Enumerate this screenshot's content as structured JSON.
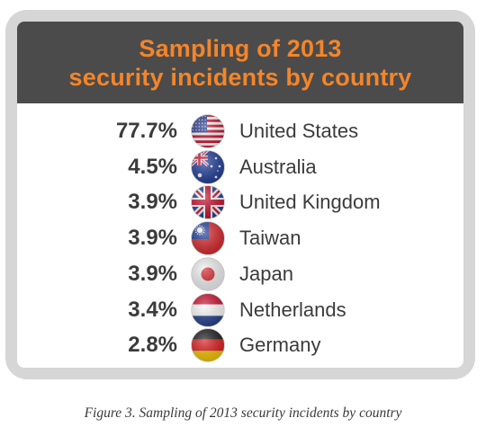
{
  "header": {
    "line1": "Sampling of 2013",
    "line2": "security incidents by country"
  },
  "chart_data": {
    "type": "table",
    "title": "Sampling of 2013 security incidents by country",
    "unit": "%",
    "rows": [
      {
        "percent": "77.7%",
        "value": 77.7,
        "country": "United States",
        "flag_icon": "us-flag-icon"
      },
      {
        "percent": "4.5%",
        "value": 4.5,
        "country": "Australia",
        "flag_icon": "australia-flag-icon"
      },
      {
        "percent": "3.9%",
        "value": 3.9,
        "country": "United Kingdom",
        "flag_icon": "uk-flag-icon"
      },
      {
        "percent": "3.9%",
        "value": 3.9,
        "country": "Taiwan",
        "flag_icon": "taiwan-flag-icon"
      },
      {
        "percent": "3.9%",
        "value": 3.9,
        "country": "Japan",
        "flag_icon": "japan-flag-icon"
      },
      {
        "percent": "3.4%",
        "value": 3.4,
        "country": "Netherlands",
        "flag_icon": "netherlands-flag-icon"
      },
      {
        "percent": "2.8%",
        "value": 2.8,
        "country": "Germany",
        "flag_icon": "germany-flag-icon"
      }
    ]
  },
  "caption": "Figure 3. Sampling of 2013 security incidents by country",
  "colors": {
    "header_bg": "#4b4b4b",
    "header_text": "#f4852a",
    "frame": "#d5d6d5",
    "text": "#3b3b3b"
  }
}
